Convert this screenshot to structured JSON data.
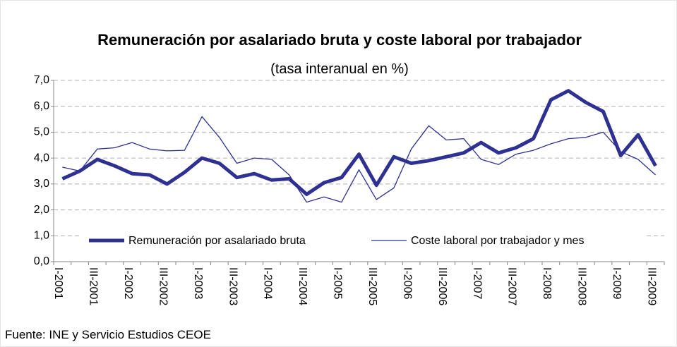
{
  "chart_data": {
    "type": "line",
    "title": "Remuneración por asalariado bruta y coste laboral por trabajador",
    "subtitle": "(tasa interanual en %)",
    "source": "Fuente: INE y Servicio Estudios CEOE",
    "categories": [
      "I-2001",
      null,
      "III-2001",
      null,
      "I-2002",
      null,
      "III-2002",
      null,
      "I-2003",
      null,
      "III-2003",
      null,
      "I-2004",
      null,
      "III-2004",
      null,
      "I-2005",
      null,
      "III-2005",
      null,
      "I-2006",
      null,
      "III-2006",
      null,
      "I-2007",
      null,
      "III-2007",
      null,
      "I-2008",
      null,
      "III-2008",
      null,
      "I-2009",
      null,
      "III-2009"
    ],
    "series": [
      {
        "name": "Remuneración por asalariado bruta",
        "color": "#2e3192",
        "width": 5,
        "values": [
          3.2,
          3.5,
          3.95,
          3.7,
          3.4,
          3.35,
          3.0,
          3.45,
          4.0,
          3.8,
          3.25,
          3.4,
          3.15,
          3.2,
          2.6,
          3.05,
          3.25,
          4.15,
          2.95,
          4.05,
          3.8,
          3.9,
          4.05,
          4.2,
          4.6,
          4.2,
          4.4,
          4.75,
          6.25,
          6.6,
          6.15,
          5.8,
          4.1,
          4.9,
          3.7
        ]
      },
      {
        "name": "Coste laboral por trabajador y mes",
        "color": "#2e3192",
        "width": 1.3,
        "values": [
          3.65,
          3.5,
          4.35,
          4.4,
          4.6,
          4.35,
          4.28,
          4.3,
          5.6,
          4.8,
          3.8,
          4.0,
          3.95,
          3.35,
          2.3,
          2.5,
          2.3,
          3.55,
          2.4,
          2.85,
          4.35,
          5.25,
          4.7,
          4.75,
          3.95,
          3.75,
          4.15,
          4.3,
          4.55,
          4.75,
          4.8,
          5.0,
          4.25,
          3.95,
          3.35
        ]
      }
    ],
    "ylim": [
      0,
      7
    ],
    "yticks": [
      {
        "value": 0,
        "label": "0,0"
      },
      {
        "value": 1,
        "label": "1,0"
      },
      {
        "value": 2,
        "label": "2,0"
      },
      {
        "value": 3,
        "label": "3,0"
      },
      {
        "value": 4,
        "label": "4,0"
      },
      {
        "value": 5,
        "label": "5,0"
      },
      {
        "value": 6,
        "label": "6,0"
      },
      {
        "value": 7,
        "label": "7,0"
      }
    ],
    "grid": true,
    "legend": "bottom"
  }
}
